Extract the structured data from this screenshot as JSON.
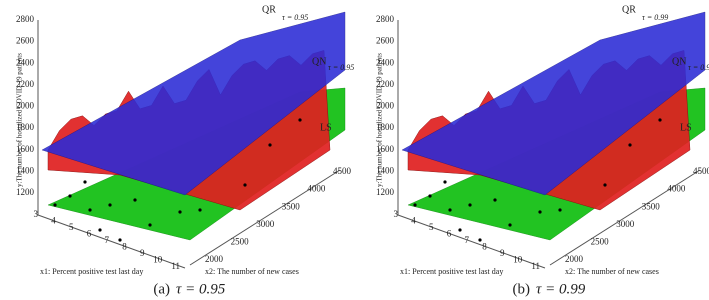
{
  "panels": [
    {
      "caption_label": "(a)",
      "caption_tau": "τ = 0.95",
      "z_label": "y:The number of hostalized COVID-19 patients",
      "z_ticks": [
        1200,
        1400,
        1600,
        1800,
        2000,
        2200,
        2400,
        2600,
        2800
      ],
      "x1_label": "x1: Percent positive test last day",
      "x1_ticks": [
        3,
        4,
        5,
        6,
        7,
        8,
        9,
        10,
        11
      ],
      "x2_label": "x2: The number of new cases",
      "x2_ticks": [
        2000,
        2500,
        3000,
        3500,
        4000,
        4500
      ],
      "surfaces": [
        {
          "name": "QR",
          "tau": "τ = 0.95",
          "color": "#2b2bd6"
        },
        {
          "name": "QN",
          "tau": "τ = 0.95",
          "color": "#e02020"
        },
        {
          "name": "LS",
          "color": "#22c322"
        }
      ]
    },
    {
      "caption_label": "(b)",
      "caption_tau": "τ = 0.99",
      "z_label": "y:The number of hostalized COVID-19 patients",
      "z_ticks": [
        1200,
        1400,
        1600,
        1800,
        2000,
        2200,
        2400,
        2600,
        2800
      ],
      "x1_label": "x1: Percent positive test last day",
      "x1_ticks": [
        3,
        4,
        5,
        6,
        7,
        8,
        9,
        10,
        11
      ],
      "x2_label": "x2: The number of new cases",
      "x2_ticks": [
        2000,
        2500,
        3000,
        3500,
        4000,
        4500
      ],
      "surfaces": [
        {
          "name": "QR",
          "tau": "τ = 0.99",
          "color": "#2b2bd6"
        },
        {
          "name": "QN",
          "tau": "τ = 0.99",
          "color": "#e02020"
        },
        {
          "name": "LS",
          "color": "#22c322"
        }
      ]
    }
  ]
}
